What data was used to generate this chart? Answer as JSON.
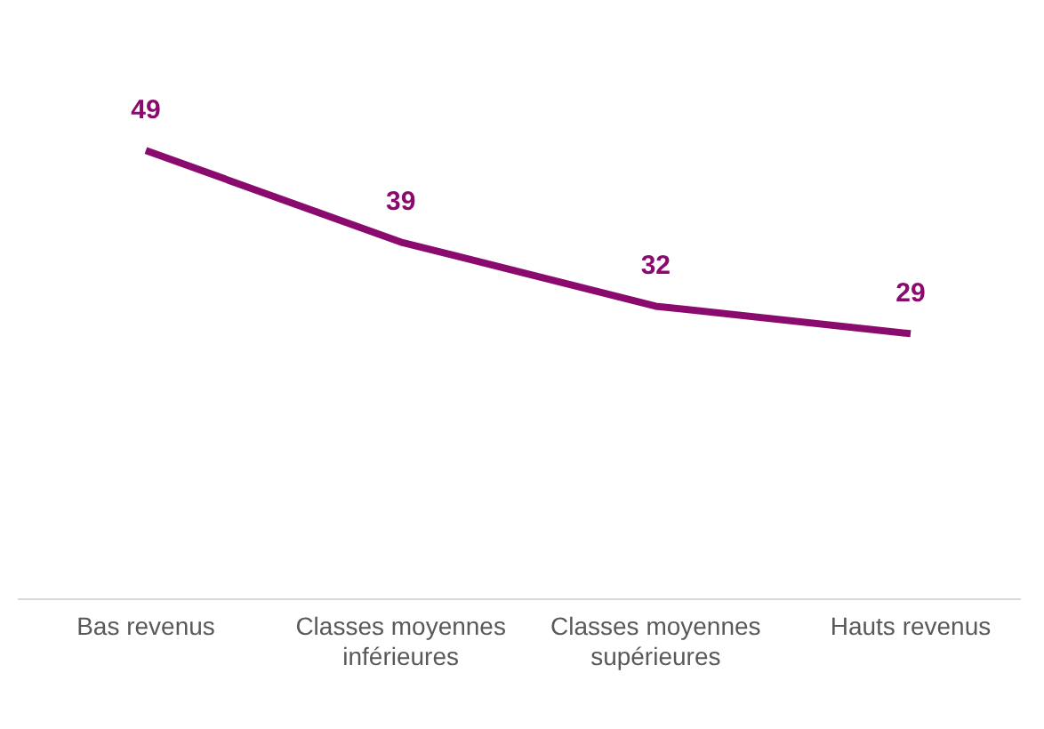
{
  "chart_data": {
    "type": "line",
    "categories": [
      "Bas revenus",
      "Classes moyennes inférieures",
      "Classes moyennes supérieures",
      "Hauts revenus"
    ],
    "series": [
      {
        "color": "#8b0a6e",
        "values": [
          49,
          39,
          32,
          29
        ]
      }
    ],
    "tick_labels": "x",
    "data_labels": true,
    "grid": false,
    "legend": false,
    "marker": "none",
    "line_style": "solid"
  }
}
